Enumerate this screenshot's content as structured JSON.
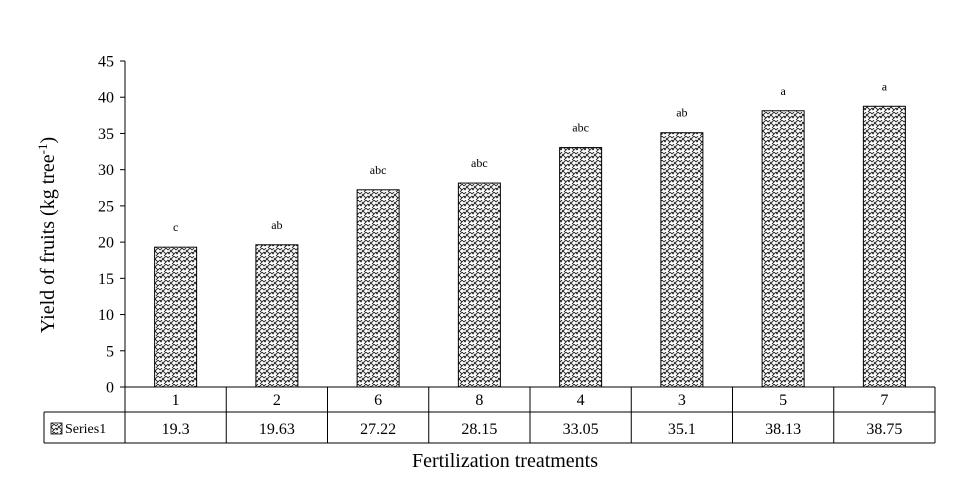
{
  "chart_data": {
    "type": "bar",
    "title": "",
    "xlabel": "Fertilization treatments",
    "ylabel_main": "Yield of fruits (kg tree",
    "ylabel_sup": "-1",
    "ylabel_close": ")",
    "ylim": [
      0,
      45
    ],
    "yticks": [
      0,
      5,
      10,
      15,
      20,
      25,
      30,
      35,
      40,
      45
    ],
    "categories": [
      "1",
      "2",
      "6",
      "8",
      "4",
      "3",
      "5",
      "7"
    ],
    "series": [
      {
        "name": "Series1",
        "values": [
          19.3,
          19.63,
          27.22,
          28.15,
          33.05,
          35.1,
          38.13,
          38.75
        ],
        "value_labels": [
          "19.3",
          "19.63",
          "27.22",
          "28.15",
          "33.05",
          "35.1",
          "38.13",
          "38.75"
        ],
        "letters": [
          "c",
          "ab",
          "abc",
          "abc",
          "abc",
          "ab",
          "a",
          "a"
        ],
        "pattern": "basket-weave hatch",
        "fill_color": "#ffffff",
        "stroke_color": "#000000"
      }
    ],
    "data_table": true,
    "legend_placement": "data-table-left",
    "grid": false
  }
}
